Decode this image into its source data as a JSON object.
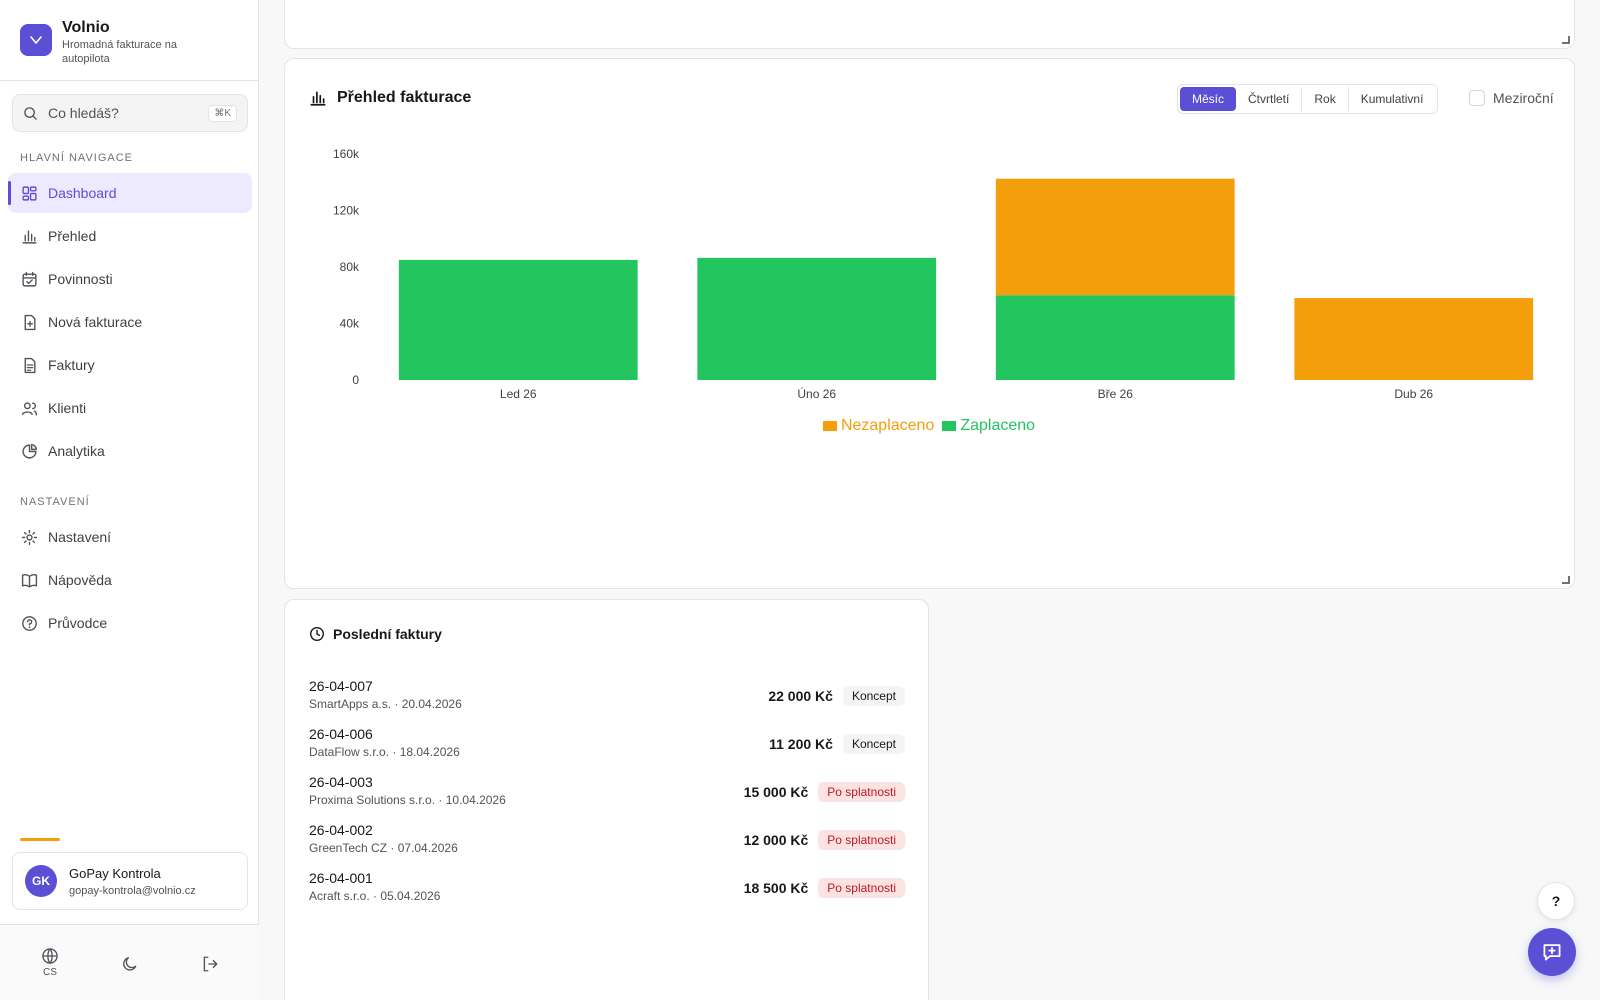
{
  "brand": {
    "name": "Volnio",
    "subtitle": "Hromadná fakturace na autopilota",
    "logo_icon": "v-logo-icon"
  },
  "search": {
    "placeholder": "Co hledáš?",
    "shortcut": "⌘K"
  },
  "nav": {
    "main_label": "HLAVNÍ NAVIGACE",
    "main": [
      {
        "label": "Dashboard",
        "icon": "dashboard-icon",
        "active": true
      },
      {
        "label": "Přehled",
        "icon": "bar-chart-icon"
      },
      {
        "label": "Povinnosti",
        "icon": "calendar-check-icon"
      },
      {
        "label": "Nová fakturace",
        "icon": "file-plus-icon"
      },
      {
        "label": "Faktury",
        "icon": "file-text-icon"
      },
      {
        "label": "Klienti",
        "icon": "users-icon"
      },
      {
        "label": "Analytika",
        "icon": "pie-chart-icon"
      }
    ],
    "settings_label": "NASTAVENÍ",
    "settings": [
      {
        "label": "Nastavení",
        "icon": "gear-icon"
      },
      {
        "label": "Nápověda",
        "icon": "book-icon"
      },
      {
        "label": "Průvodce",
        "icon": "help-circle-icon"
      }
    ]
  },
  "user": {
    "initials": "GK",
    "name": "GoPay Kontrola",
    "email": "gopay-kontrola@volnio.cz"
  },
  "bottom": {
    "language": "CS"
  },
  "billing": {
    "title": "Přehled fakturace",
    "periods": [
      "Měsíc",
      "Čtvrtletí",
      "Rok",
      "Kumulativní"
    ],
    "active_period": "Měsíc",
    "yoy_label": "Meziroční"
  },
  "chart_data": {
    "type": "bar",
    "stacked": true,
    "categories": [
      "Led 26",
      "Úno 26",
      "Bře 26",
      "Dub 26"
    ],
    "series": [
      {
        "name": "Zaplaceno",
        "color": "#22c55e",
        "values": [
          85000,
          86500,
          60000,
          0
        ]
      },
      {
        "name": "Nezaplaceno",
        "color": "#f59e0b",
        "values": [
          0,
          0,
          82500,
          58000
        ]
      }
    ],
    "ylim": [
      0,
      160000
    ],
    "yticks": [
      0,
      40000,
      80000,
      120000,
      160000
    ],
    "ytick_labels": [
      "0",
      "40k",
      "80k",
      "120k",
      "160k"
    ],
    "legend": [
      "Nezaplaceno",
      "Zaplaceno"
    ],
    "legend_position": "bottom-center",
    "grid": false
  },
  "recent": {
    "title": "Poslední faktury",
    "invoices": [
      {
        "number": "26-04-007",
        "meta": "SmartApps a.s. · 20.04.2026",
        "amount": "22 000 Kč",
        "status": "Koncept",
        "status_type": "concept"
      },
      {
        "number": "26-04-006",
        "meta": "DataFlow s.r.o. · 18.04.2026",
        "amount": "11 200 Kč",
        "status": "Koncept",
        "status_type": "concept"
      },
      {
        "number": "26-04-003",
        "meta": "Proxima Solutions s.r.o. · 10.04.2026",
        "amount": "15 000 Kč",
        "status": "Po splatnosti",
        "status_type": "overdue"
      },
      {
        "number": "26-04-002",
        "meta": "GreenTech CZ · 07.04.2026",
        "amount": "12 000 Kč",
        "status": "Po splatnosti",
        "status_type": "overdue"
      },
      {
        "number": "26-04-001",
        "meta": "Acraft s.r.o. · 05.04.2026",
        "amount": "18 500 Kč",
        "status": "Po splatnosti",
        "status_type": "overdue"
      }
    ]
  },
  "fab": {
    "help_label": "?"
  },
  "colors": {
    "accent": "#5b4fd6",
    "paid": "#22c55e",
    "unpaid": "#f59e0b",
    "overdue_bg": "#fde2e2",
    "overdue_text": "#b91c1c"
  }
}
